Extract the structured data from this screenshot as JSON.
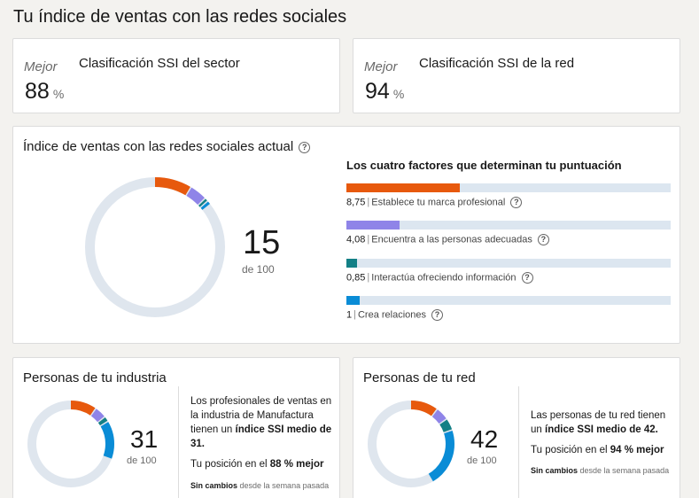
{
  "page": {
    "title": "Tu índice de ventas con las redes sociales"
  },
  "sector_rank": {
    "prefix": "Mejor",
    "title": "Clasificación SSI del sector",
    "value": "88",
    "unit": "%"
  },
  "network_rank": {
    "prefix": "Mejor",
    "title": "Clasificación SSI de la red",
    "value": "94",
    "unit": "%"
  },
  "current_ssi": {
    "title": "Índice de ventas con las redes sociales actual",
    "score": "15",
    "of_label": "de 100",
    "max": 100,
    "factors_title": "Los cuatro factores que determinan tu puntuación",
    "factors": [
      {
        "score": "8,75",
        "value": 8.75,
        "max": 25,
        "label": "Establece tu marca profesional",
        "color": "#e7590d"
      },
      {
        "score": "4,08",
        "value": 4.08,
        "max": 25,
        "label": "Encuentra a las personas adecuadas",
        "color": "#8f84e8"
      },
      {
        "score": "0,85",
        "value": 0.85,
        "max": 25,
        "label": "Interactúa ofreciendo información",
        "color": "#138086"
      },
      {
        "score": "1",
        "value": 1,
        "max": 25,
        "label": "Crea relaciones",
        "color": "#0a8cd6"
      }
    ]
  },
  "industry": {
    "title": "Personas de tu industria",
    "score": "31",
    "of_label": "de 100",
    "segments": [
      {
        "value": 10,
        "color": "#e7590d"
      },
      {
        "value": 4.5,
        "color": "#8f84e8"
      },
      {
        "value": 2,
        "color": "#138086"
      },
      {
        "value": 14.5,
        "color": "#0a8cd6"
      }
    ],
    "desc_pre": "Los profesionales de ventas en la industria de Manufactura tienen un",
    "desc_bold": "índice SSI medio de 31.",
    "position_pre": "Tu posición en el",
    "position_bold": "88 % mejor",
    "change_bold": "Sin cambios",
    "change_rest": "desde la semana pasada"
  },
  "network": {
    "title": "Personas de tu red",
    "score": "42",
    "of_label": "de 100",
    "segments": [
      {
        "value": 10.5,
        "color": "#e7590d"
      },
      {
        "value": 5,
        "color": "#8f84e8"
      },
      {
        "value": 4.5,
        "color": "#138086"
      },
      {
        "value": 22,
        "color": "#0a8cd6"
      }
    ],
    "desc_pre": "Las personas de tu red tienen un",
    "desc_bold": "índice SSI medio de 42.",
    "position_pre": "Tu posición en el",
    "position_bold": "94 % mejor",
    "change_bold": "Sin cambios",
    "change_rest": "desde la semana pasada"
  },
  "icons": {
    "help": "help-circle-icon"
  },
  "colors": {
    "ring_track": "#dfe6ee",
    "bar_track": "#dce6f0"
  }
}
